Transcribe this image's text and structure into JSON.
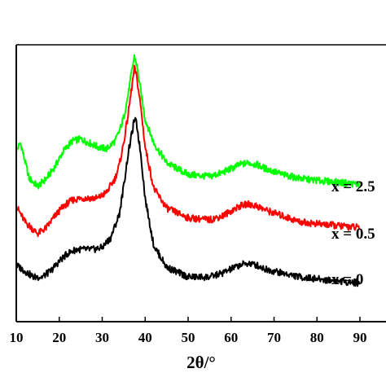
{
  "chart_data": {
    "type": "line",
    "xlabel": "2θ/°",
    "ylabel": "",
    "xlim": [
      10,
      90
    ],
    "x_ticks": [
      10,
      20,
      30,
      40,
      50,
      60,
      70,
      80,
      90
    ],
    "x_tick_labels": [
      "10",
      "20",
      "30",
      "40",
      "50",
      "60",
      "70",
      "80",
      "90"
    ],
    "y_axis": "intensity (a.u.), no tick labels",
    "grid": false,
    "series": [
      {
        "name": "x = 2.5",
        "label": "x = 2.5",
        "color": "#00ff00",
        "x": [
          10,
          11,
          13,
          15,
          17,
          19,
          21,
          23,
          25,
          27,
          29,
          31,
          33,
          34,
          35,
          36,
          37,
          37.5,
          38,
          39,
          40,
          42,
          45,
          50,
          55,
          58,
          62,
          64,
          66,
          68,
          72,
          76,
          80,
          85,
          90
        ],
        "y": [
          0.66,
          0.7,
          0.52,
          0.48,
          0.52,
          0.58,
          0.66,
          0.71,
          0.72,
          0.7,
          0.68,
          0.67,
          0.71,
          0.76,
          0.83,
          0.94,
          1.08,
          1.14,
          1.1,
          0.96,
          0.82,
          0.7,
          0.6,
          0.54,
          0.53,
          0.55,
          0.59,
          0.6,
          0.59,
          0.57,
          0.54,
          0.52,
          0.51,
          0.5,
          0.49
        ]
      },
      {
        "name": "x = 0.5",
        "label": "x = 0.5",
        "color": "#ff0000",
        "x": [
          10,
          12,
          15,
          17,
          19,
          21,
          23,
          25,
          27,
          29,
          31,
          33,
          34,
          35,
          36,
          37,
          37.5,
          38,
          39,
          40,
          42,
          45,
          50,
          55,
          58,
          62,
          64,
          66,
          68,
          72,
          76,
          80,
          85,
          90
        ],
        "y": [
          0.38,
          0.3,
          0.24,
          0.27,
          0.33,
          0.38,
          0.41,
          0.42,
          0.42,
          0.42,
          0.45,
          0.52,
          0.59,
          0.7,
          0.84,
          1.0,
          1.08,
          1.04,
          0.88,
          0.68,
          0.47,
          0.37,
          0.32,
          0.31,
          0.33,
          0.38,
          0.39,
          0.38,
          0.36,
          0.33,
          0.3,
          0.29,
          0.28,
          0.27
        ]
      },
      {
        "name": "x = 0",
        "label": "x = 0",
        "color": "#000000",
        "x": [
          10,
          12,
          14,
          16,
          18,
          20,
          22,
          24,
          26,
          28,
          30,
          32,
          34,
          35,
          36,
          37,
          37.5,
          38,
          39,
          40,
          42,
          45,
          50,
          55,
          58,
          62,
          64,
          66,
          68,
          72,
          76,
          80,
          85,
          90
        ],
        "y": [
          0.08,
          0.05,
          0.02,
          0.02,
          0.05,
          0.1,
          0.14,
          0.16,
          0.16,
          0.16,
          0.17,
          0.22,
          0.34,
          0.48,
          0.64,
          0.76,
          0.82,
          0.8,
          0.64,
          0.42,
          0.18,
          0.07,
          0.02,
          0.02,
          0.04,
          0.08,
          0.09,
          0.08,
          0.06,
          0.04,
          0.02,
          0.01,
          0.0,
          -0.01
        ]
      }
    ]
  }
}
